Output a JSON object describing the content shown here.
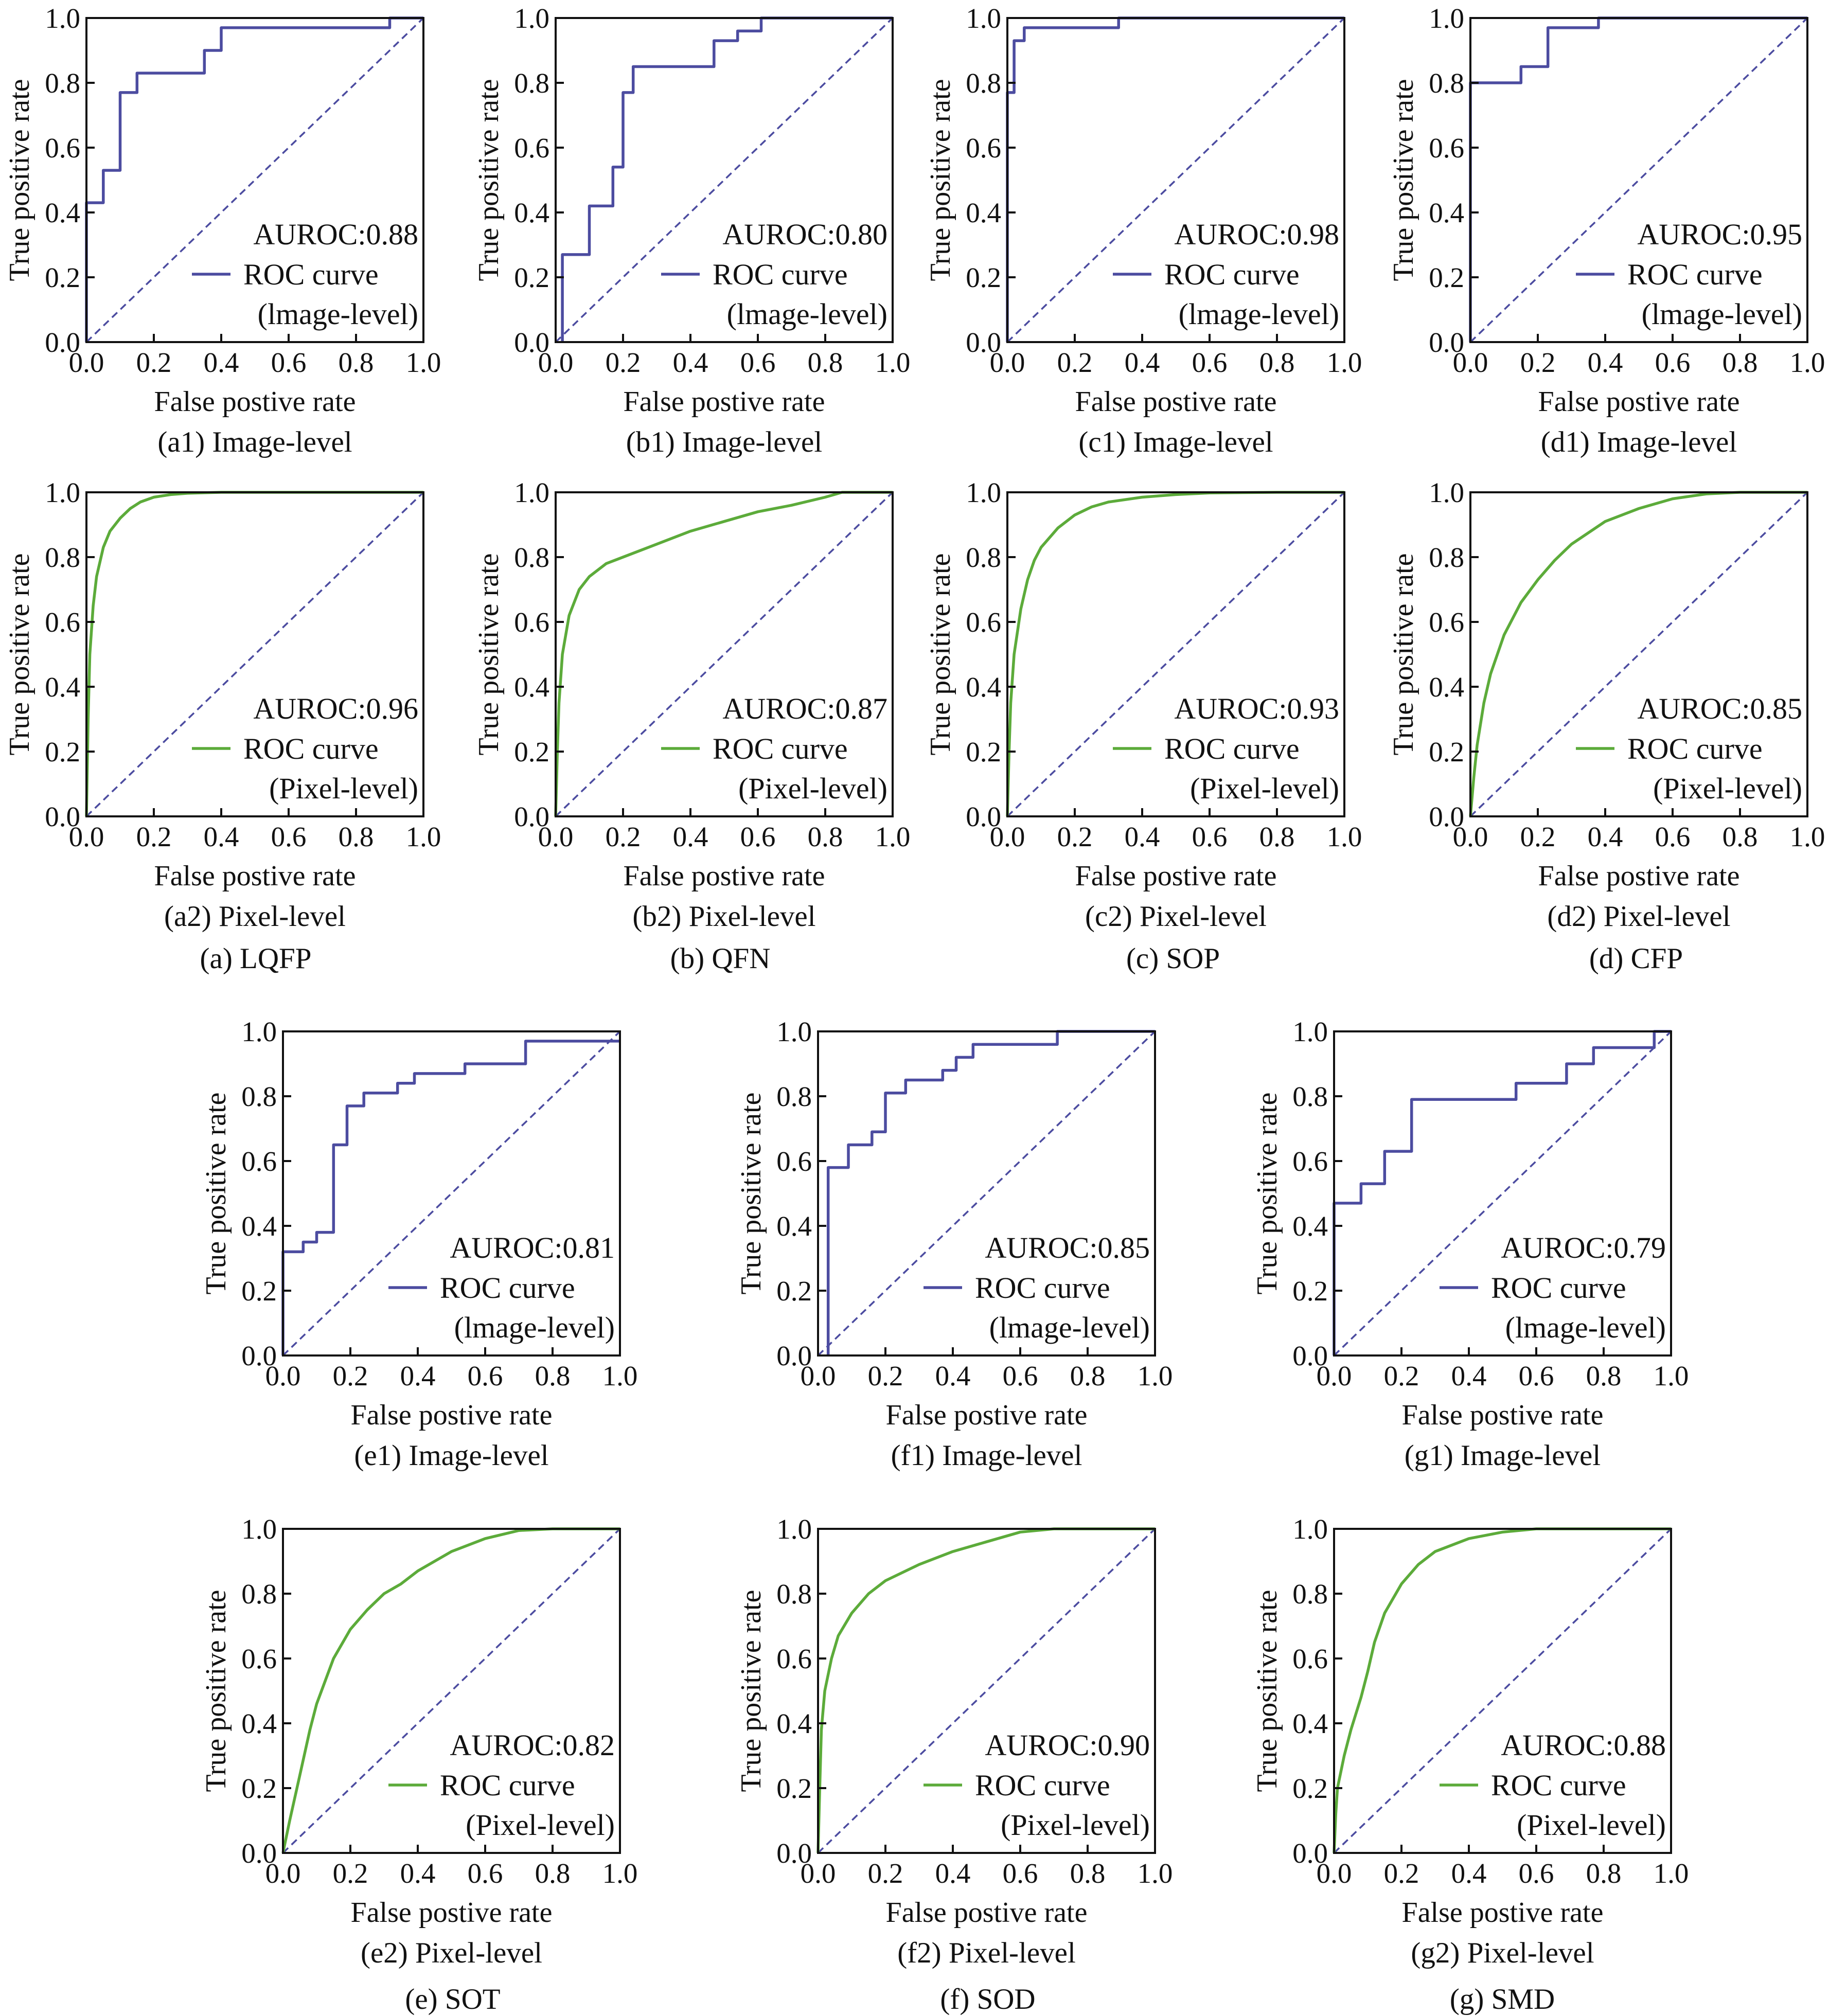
{
  "colors": {
    "image_level": "#4c4ca0",
    "pixel_level": "#5cab3a",
    "diagonal": "#4c4ca0",
    "axis": "#111111"
  },
  "common": {
    "xlabel": "False postive rate",
    "ylabel": "True positive rate",
    "legend_label": "ROC curve",
    "ticks": [
      "0.0",
      "0.2",
      "0.4",
      "0.6",
      "0.8",
      "1.0"
    ],
    "xlim": [
      0,
      1
    ],
    "ylim": [
      0,
      1
    ]
  },
  "group_captions": [
    {
      "id": "a",
      "text": "(a) LQFP"
    },
    {
      "id": "b",
      "text": "(b) QFN"
    },
    {
      "id": "c",
      "text": "(c) SOP"
    },
    {
      "id": "d",
      "text": "(d) CFP"
    },
    {
      "id": "e",
      "text": "(e) SOT"
    },
    {
      "id": "f",
      "text": "(f) SOD"
    },
    {
      "id": "g",
      "text": "(g) SMD"
    }
  ],
  "chart_data": [
    {
      "id": "a1",
      "type": "line",
      "level": "image",
      "title": "(a1) Image-level",
      "auroc_text": "AUROC:0.88",
      "legend_sub": "(lmage-level)",
      "xlabel": "False postive rate",
      "ylabel": "True positive rate",
      "xlim": [
        0,
        1
      ],
      "ylim": [
        0,
        1
      ],
      "series": [
        {
          "name": "ROC curve (lmage-level)",
          "step": true,
          "x": [
            0,
            0,
            0.05,
            0.05,
            0.1,
            0.1,
            0.15,
            0.15,
            0.35,
            0.35,
            0.4,
            0.4,
            0.9,
            0.9,
            1.0
          ],
          "y": [
            0,
            0.43,
            0.43,
            0.53,
            0.53,
            0.77,
            0.77,
            0.83,
            0.83,
            0.9,
            0.9,
            0.97,
            0.97,
            1.0,
            1.0
          ]
        }
      ]
    },
    {
      "id": "b1",
      "type": "line",
      "level": "image",
      "title": "(b1) Image-level",
      "auroc_text": "AUROC:0.80",
      "legend_sub": "(lmage-level)",
      "xlabel": "False postive rate",
      "ylabel": "True positive rate",
      "xlim": [
        0,
        1
      ],
      "ylim": [
        0,
        1
      ],
      "series": [
        {
          "name": "ROC curve (lmage-level)",
          "step": true,
          "x": [
            0.02,
            0.02,
            0.1,
            0.1,
            0.17,
            0.17,
            0.2,
            0.2,
            0.23,
            0.23,
            0.47,
            0.47,
            0.54,
            0.54,
            0.61,
            0.61,
            1.0
          ],
          "y": [
            0,
            0.27,
            0.27,
            0.42,
            0.42,
            0.54,
            0.54,
            0.77,
            0.77,
            0.85,
            0.85,
            0.93,
            0.93,
            0.96,
            0.96,
            1.0,
            1.0
          ]
        }
      ]
    },
    {
      "id": "c1",
      "type": "line",
      "level": "image",
      "title": "(c1) Image-level",
      "auroc_text": "AUROC:0.98",
      "legend_sub": "(lmage-level)",
      "xlabel": "False postive rate",
      "ylabel": "True positive rate",
      "xlim": [
        0,
        1
      ],
      "ylim": [
        0,
        1
      ],
      "series": [
        {
          "name": "ROC curve (lmage-level)",
          "step": true,
          "x": [
            0,
            0,
            0.02,
            0.02,
            0.05,
            0.05,
            0.33,
            0.33,
            1.0
          ],
          "y": [
            0,
            0.77,
            0.77,
            0.93,
            0.93,
            0.97,
            0.97,
            1.0,
            1.0
          ]
        }
      ]
    },
    {
      "id": "d1",
      "type": "line",
      "level": "image",
      "title": "(d1) Image-level",
      "auroc_text": "AUROC:0.95",
      "legend_sub": "(lmage-level)",
      "xlabel": "False postive rate",
      "ylabel": "True positive rate",
      "xlim": [
        0,
        1
      ],
      "ylim": [
        0,
        1
      ],
      "series": [
        {
          "name": "ROC curve (lmage-level)",
          "step": true,
          "x": [
            0,
            0,
            0.15,
            0.15,
            0.23,
            0.23,
            0.38,
            0.38,
            1.0
          ],
          "y": [
            0,
            0.8,
            0.8,
            0.85,
            0.85,
            0.97,
            0.97,
            1.0,
            1.0
          ]
        }
      ]
    },
    {
      "id": "a2",
      "type": "line",
      "level": "pixel",
      "title": "(a2) Pixel-level",
      "auroc_text": "AUROC:0.96",
      "legend_sub": "(Pixel-level)",
      "xlabel": "False postive rate",
      "ylabel": "True positive rate",
      "xlim": [
        0,
        1
      ],
      "ylim": [
        0,
        1
      ],
      "series": [
        {
          "name": "ROC curve (Pixel-level)",
          "x": [
            0,
            0.005,
            0.01,
            0.02,
            0.03,
            0.05,
            0.07,
            0.1,
            0.13,
            0.16,
            0.2,
            0.25,
            0.3,
            0.4,
            0.5,
            0.7,
            1.0
          ],
          "y": [
            0,
            0.3,
            0.5,
            0.65,
            0.74,
            0.83,
            0.88,
            0.92,
            0.95,
            0.97,
            0.985,
            0.993,
            0.997,
            1.0,
            1.0,
            1.0,
            1.0
          ]
        }
      ]
    },
    {
      "id": "b2",
      "type": "line",
      "level": "pixel",
      "title": "(b2) Pixel-level",
      "auroc_text": "AUROC:0.87",
      "legend_sub": "(Pixel-level)",
      "xlabel": "False postive rate",
      "ylabel": "True positive rate",
      "xlim": [
        0,
        1
      ],
      "ylim": [
        0,
        1
      ],
      "series": [
        {
          "name": "ROC curve (Pixel-level)",
          "x": [
            0,
            0.005,
            0.01,
            0.02,
            0.04,
            0.07,
            0.1,
            0.15,
            0.2,
            0.3,
            0.4,
            0.5,
            0.6,
            0.7,
            0.8,
            0.85,
            1.0
          ],
          "y": [
            0,
            0.2,
            0.35,
            0.5,
            0.62,
            0.7,
            0.74,
            0.78,
            0.8,
            0.84,
            0.88,
            0.91,
            0.94,
            0.96,
            0.985,
            1.0,
            1.0
          ]
        }
      ]
    },
    {
      "id": "c2",
      "type": "line",
      "level": "pixel",
      "title": "(c2) Pixel-level",
      "auroc_text": "AUROC:0.93",
      "legend_sub": "(Pixel-level)",
      "xlabel": "False postive rate",
      "ylabel": "True positive rate",
      "xlim": [
        0,
        1
      ],
      "ylim": [
        0,
        1
      ],
      "series": [
        {
          "name": "ROC curve (Pixel-level)",
          "x": [
            0,
            0.005,
            0.01,
            0.02,
            0.04,
            0.06,
            0.08,
            0.1,
            0.15,
            0.2,
            0.25,
            0.3,
            0.4,
            0.5,
            0.6,
            0.8,
            1.0
          ],
          "y": [
            0,
            0.2,
            0.35,
            0.5,
            0.64,
            0.73,
            0.79,
            0.83,
            0.89,
            0.93,
            0.955,
            0.97,
            0.985,
            0.993,
            0.998,
            1.0,
            1.0
          ]
        }
      ]
    },
    {
      "id": "d2",
      "type": "line",
      "level": "pixel",
      "title": "(d2) Pixel-level",
      "auroc_text": "AUROC:0.85",
      "legend_sub": "(Pixel-level)",
      "xlabel": "False postive rate",
      "ylabel": "True positive rate",
      "xlim": [
        0,
        1
      ],
      "ylim": [
        0,
        1
      ],
      "series": [
        {
          "name": "ROC curve (Pixel-level)",
          "x": [
            0,
            0.01,
            0.02,
            0.04,
            0.06,
            0.1,
            0.15,
            0.2,
            0.25,
            0.3,
            0.4,
            0.5,
            0.6,
            0.7,
            0.8,
            1.0
          ],
          "y": [
            0,
            0.12,
            0.22,
            0.35,
            0.44,
            0.56,
            0.66,
            0.73,
            0.79,
            0.84,
            0.91,
            0.95,
            0.98,
            0.995,
            1.0,
            1.0
          ]
        }
      ]
    },
    {
      "id": "e1",
      "type": "line",
      "level": "image",
      "title": "(e1) Image-level",
      "auroc_text": "AUROC:0.81",
      "legend_sub": "(lmage-level)",
      "xlabel": "False postive rate",
      "ylabel": "True positive rate",
      "xlim": [
        0,
        1
      ],
      "ylim": [
        0,
        1
      ],
      "series": [
        {
          "name": "ROC curve (lmage-level)",
          "step": true,
          "x": [
            0,
            0,
            0.06,
            0.06,
            0.1,
            0.1,
            0.15,
            0.15,
            0.19,
            0.19,
            0.24,
            0.24,
            0.34,
            0.34,
            0.39,
            0.39,
            0.54,
            0.54,
            0.72,
            0.72,
            1.0
          ],
          "y": [
            0,
            0.32,
            0.32,
            0.35,
            0.35,
            0.38,
            0.38,
            0.65,
            0.65,
            0.77,
            0.77,
            0.81,
            0.81,
            0.84,
            0.84,
            0.87,
            0.87,
            0.9,
            0.9,
            0.97,
            0.97
          ]
        }
      ]
    },
    {
      "id": "f1",
      "type": "line",
      "level": "image",
      "title": "(f1) Image-level",
      "auroc_text": "AUROC:0.85",
      "legend_sub": "(lmage-level)",
      "xlabel": "False postive rate",
      "ylabel": "True positive rate",
      "xlim": [
        0,
        1
      ],
      "ylim": [
        0,
        1
      ],
      "series": [
        {
          "name": "ROC curve (lmage-level)",
          "step": true,
          "x": [
            0.03,
            0.03,
            0.09,
            0.09,
            0.16,
            0.16,
            0.2,
            0.2,
            0.26,
            0.26,
            0.37,
            0.37,
            0.41,
            0.41,
            0.46,
            0.46,
            0.71,
            0.71,
            1.0
          ],
          "y": [
            0,
            0.58,
            0.58,
            0.65,
            0.65,
            0.69,
            0.69,
            0.81,
            0.81,
            0.85,
            0.85,
            0.88,
            0.88,
            0.92,
            0.92,
            0.96,
            0.96,
            1.0,
            1.0
          ]
        }
      ]
    },
    {
      "id": "g1",
      "type": "line",
      "level": "image",
      "title": "(g1) Image-level",
      "auroc_text": "AUROC:0.79",
      "legend_sub": "(lmage-level)",
      "xlabel": "False postive rate",
      "ylabel": "True positive rate",
      "xlim": [
        0,
        1
      ],
      "ylim": [
        0,
        1
      ],
      "series": [
        {
          "name": "ROC curve (lmage-level)",
          "step": true,
          "x": [
            0,
            0,
            0.08,
            0.08,
            0.15,
            0.15,
            0.23,
            0.23,
            0.54,
            0.54,
            0.69,
            0.69,
            0.77,
            0.77,
            0.95,
            0.95,
            1.0
          ],
          "y": [
            0,
            0.47,
            0.47,
            0.53,
            0.53,
            0.63,
            0.63,
            0.79,
            0.79,
            0.84,
            0.84,
            0.9,
            0.9,
            0.95,
            0.95,
            1.0,
            1.0
          ]
        }
      ]
    },
    {
      "id": "e2",
      "type": "line",
      "level": "pixel",
      "title": "(e2) Pixel-level",
      "auroc_text": "AUROC:0.82",
      "legend_sub": "(Pixel-level)",
      "xlabel": "False postive rate",
      "ylabel": "True positive rate",
      "xlim": [
        0,
        1
      ],
      "ylim": [
        0,
        1
      ],
      "series": [
        {
          "name": "ROC curve (Pixel-level)",
          "x": [
            0,
            0.02,
            0.05,
            0.08,
            0.1,
            0.15,
            0.2,
            0.25,
            0.3,
            0.35,
            0.4,
            0.5,
            0.6,
            0.7,
            0.8,
            1.0
          ],
          "y": [
            0,
            0.1,
            0.24,
            0.38,
            0.46,
            0.6,
            0.69,
            0.75,
            0.8,
            0.83,
            0.87,
            0.93,
            0.97,
            0.995,
            1.0,
            1.0
          ]
        }
      ]
    },
    {
      "id": "f2",
      "type": "line",
      "level": "pixel",
      "title": "(f2) Pixel-level",
      "auroc_text": "AUROC:0.90",
      "legend_sub": "(Pixel-level)",
      "xlabel": "False postive rate",
      "ylabel": "True positive rate",
      "xlim": [
        0,
        1
      ],
      "ylim": [
        0,
        1
      ],
      "series": [
        {
          "name": "ROC curve (Pixel-level)",
          "x": [
            0,
            0.005,
            0.01,
            0.02,
            0.04,
            0.06,
            0.1,
            0.15,
            0.2,
            0.3,
            0.4,
            0.5,
            0.6,
            0.7,
            1.0
          ],
          "y": [
            0,
            0.2,
            0.38,
            0.5,
            0.6,
            0.67,
            0.74,
            0.8,
            0.84,
            0.89,
            0.93,
            0.96,
            0.99,
            1.0,
            1.0
          ]
        }
      ]
    },
    {
      "id": "g2",
      "type": "line",
      "level": "pixel",
      "title": "(g2) Pixel-level",
      "auroc_text": "AUROC:0.88",
      "legend_sub": "(Pixel-level)",
      "xlabel": "False postive rate",
      "ylabel": "True positive rate",
      "xlim": [
        0,
        1
      ],
      "ylim": [
        0,
        1
      ],
      "series": [
        {
          "name": "ROC curve (Pixel-level)",
          "x": [
            0,
            0.005,
            0.01,
            0.03,
            0.05,
            0.08,
            0.1,
            0.12,
            0.15,
            0.2,
            0.25,
            0.3,
            0.4,
            0.5,
            0.6,
            0.7,
            1.0
          ],
          "y": [
            0,
            0.12,
            0.2,
            0.3,
            0.38,
            0.48,
            0.56,
            0.65,
            0.74,
            0.83,
            0.89,
            0.93,
            0.97,
            0.99,
            1.0,
            1.0,
            1.0
          ]
        }
      ]
    }
  ]
}
